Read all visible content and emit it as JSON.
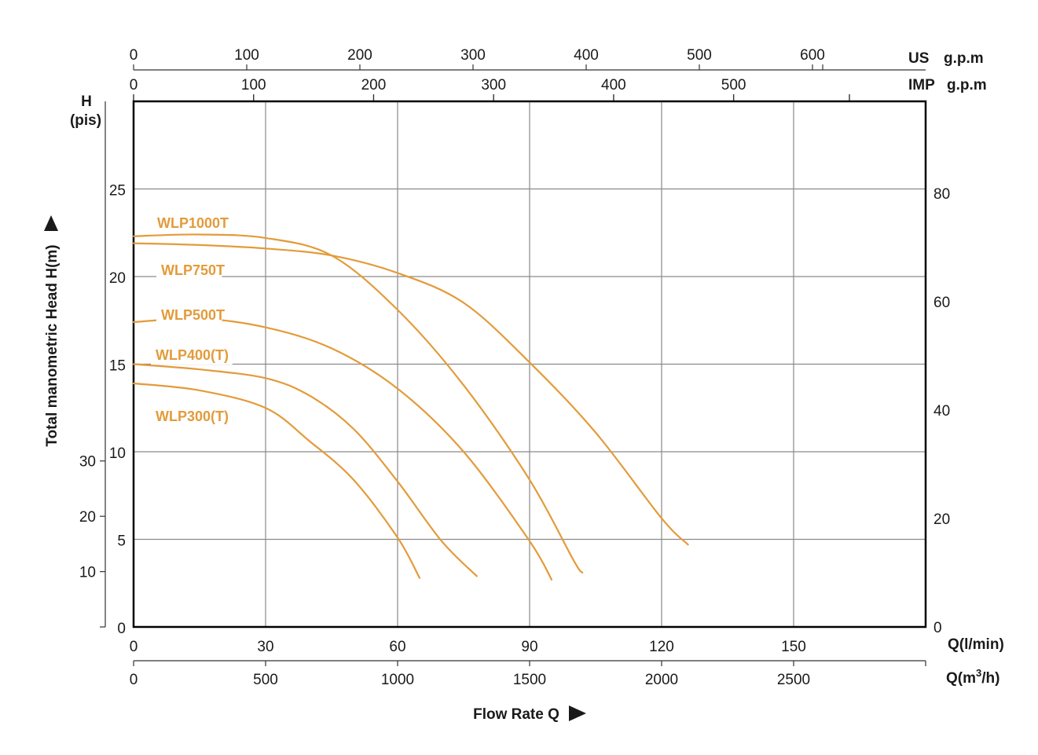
{
  "chart_data": {
    "type": "line",
    "title": "",
    "xlabel": "Flow Rate Q",
    "ylabel": "Total manometric  Head H(m)",
    "x_unit": "Q(l/min)",
    "x_lim": [
      0,
      180
    ],
    "x_ticks": [
      0,
      30,
      60,
      90,
      120,
      150
    ],
    "y_lim": [
      0,
      30
    ],
    "y_ticks": [
      0,
      5,
      10,
      15,
      20,
      25
    ],
    "grid": true,
    "secondary_axes": {
      "top_us": {
        "label_main": "US",
        "label_unit": "g.p.m",
        "lim": [
          0,
          700
        ],
        "ticks": [
          0,
          100,
          200,
          300,
          400,
          500,
          600
        ]
      },
      "top_imp": {
        "label_main": "IMP",
        "label_unit": "g.p.m",
        "lim": [
          0,
          660
        ],
        "ticks": [
          0,
          100,
          200,
          300,
          400,
          500
        ]
      },
      "bottom_m3h": {
        "label": "Q(m3/h)",
        "label_main": "Q(m",
        "label_sup": "3",
        "label_end": "/h)",
        "lim": [
          0,
          3000
        ],
        "ticks": [
          0,
          500,
          1000,
          1500,
          2000,
          2500
        ]
      },
      "left_pis": {
        "label_h": "H",
        "label_unit": "(pis)",
        "lim": [
          0,
          95
        ],
        "ticks": [
          10,
          20,
          30
        ]
      },
      "right_ft": {
        "lim": [
          0,
          97
        ],
        "ticks": [
          0,
          20,
          40,
          60,
          80
        ]
      }
    },
    "series": [
      {
        "name": "WLP1000T",
        "x": [
          0,
          15,
          30,
          45,
          60,
          75,
          90,
          105,
          120,
          126
        ],
        "y": [
          21.9,
          21.8,
          21.6,
          21.2,
          20.2,
          18.5,
          15.1,
          11.1,
          6.2,
          4.7
        ]
      },
      {
        "name": "WLP750T",
        "x": [
          0,
          15,
          30,
          45,
          60,
          75,
          90,
          100,
          102
        ],
        "y": [
          22.3,
          22.4,
          22.2,
          21.2,
          18.1,
          13.8,
          8.4,
          3.8,
          3.1
        ]
      },
      {
        "name": "WLP500T",
        "x": [
          0,
          15,
          30,
          45,
          60,
          75,
          90,
          95
        ],
        "y": [
          17.4,
          17.6,
          17.1,
          15.9,
          13.6,
          10.0,
          4.9,
          2.7
        ]
      },
      {
        "name": "WLP400(T)",
        "x": [
          0,
          15,
          30,
          40,
          50,
          60,
          70,
          78
        ],
        "y": [
          15.0,
          14.7,
          14.2,
          13.2,
          11.3,
          8.3,
          4.9,
          2.9
        ]
      },
      {
        "name": "WLP300(T)",
        "x": [
          0,
          15,
          30,
          40,
          50,
          60,
          65
        ],
        "y": [
          13.9,
          13.5,
          12.5,
          10.6,
          8.4,
          5.1,
          2.8
        ]
      }
    ],
    "colors": {
      "series": "#e39b3a",
      "grid": "#8a8a8a",
      "frame": "#000000"
    }
  }
}
